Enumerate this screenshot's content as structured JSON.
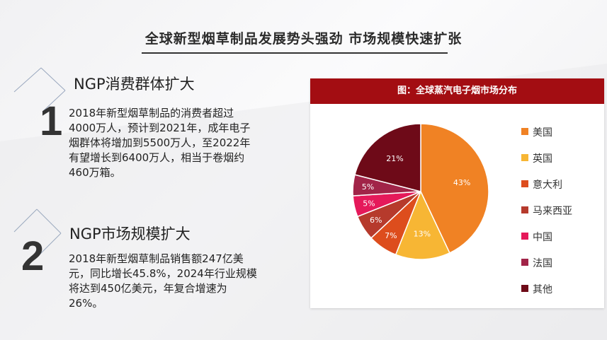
{
  "slide": {
    "title": "全球新型烟草制品发展势头强劲 市场规模快速扩张"
  },
  "sections": [
    {
      "number": "1",
      "heading": "NGP消费群体扩大",
      "lines": [
        "2018年新型烟草制品的消费者超过",
        "4000万人，预计到2021年，成年电子",
        "烟群体将增加到5500万人，至2022年",
        "有望增长到6400万人，相当于卷烟约",
        "460万箱。"
      ]
    },
    {
      "number": "2",
      "heading": "NGP市场规模扩大",
      "lines": [
        "2018年新型烟草制品销售额247亿美",
        "元，同比增长45.8%，2024年行业规模",
        "将达到450亿美元，年复合增速为",
        "26%。"
      ]
    }
  ],
  "chart_data": {
    "type": "pie",
    "title": "图：全球蒸汽电子烟市场分布",
    "legend_position": "right",
    "categories": [
      "美国",
      "英国",
      "意大利",
      "马来西亚",
      "中国",
      "法国",
      "其他"
    ],
    "values": [
      43,
      13,
      7,
      6,
      5,
      5,
      21
    ],
    "labels": [
      "43%",
      "13%",
      "7%",
      "6%",
      "5%",
      "5%",
      "21%"
    ],
    "colors": [
      "#f08224",
      "#f7b634",
      "#dd4d1d",
      "#b63a2c",
      "#e5195a",
      "#a12448",
      "#6e0a18"
    ]
  }
}
